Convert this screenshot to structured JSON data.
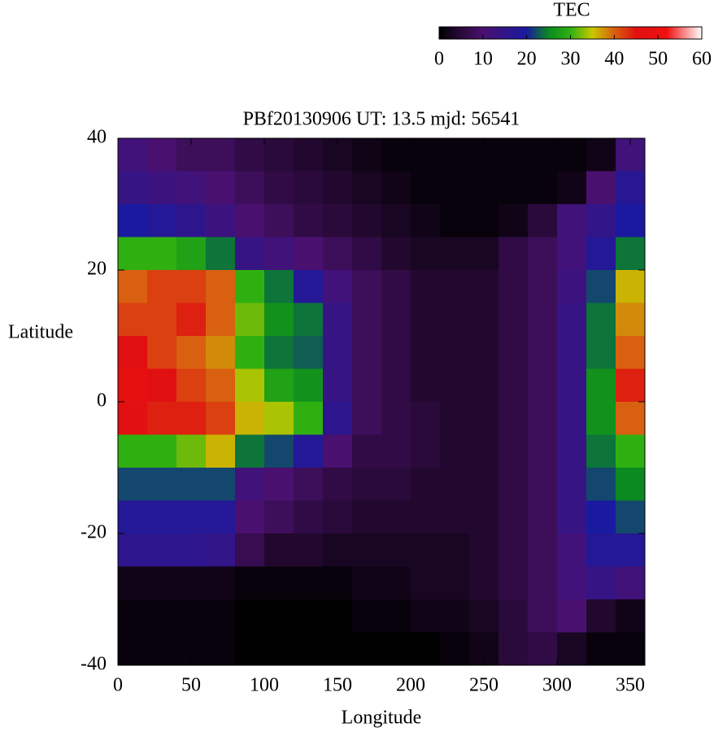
{
  "chart_data": {
    "type": "heatmap",
    "title": "PBf20130906  UT: 13.5  mjd: 56541",
    "x_label": "Longitude",
    "y_label": "Latitude",
    "xlim": [
      0,
      360
    ],
    "ylim": [
      -40,
      40
    ],
    "xticks": [
      0,
      50,
      100,
      150,
      200,
      250,
      300,
      350
    ],
    "yticks": [
      -40,
      -20,
      0,
      20,
      40
    ],
    "x": [
      10,
      30,
      50,
      70,
      90,
      110,
      130,
      150,
      170,
      190,
      210,
      230,
      250,
      270,
      290,
      310,
      330,
      350
    ],
    "y": [
      37.5,
      32.5,
      27.5,
      22.5,
      17.5,
      12.5,
      7.5,
      2.5,
      -2.5,
      -7.5,
      -12.5,
      -17.5,
      -22.5,
      -27.5,
      -32.5,
      -37.5
    ],
    "z": [
      [
        12,
        10,
        8,
        8,
        6,
        5,
        4,
        3,
        2,
        1,
        1,
        1,
        1,
        1,
        1,
        1,
        2,
        12
      ],
      [
        14,
        13,
        12,
        10,
        8,
        6,
        5,
        4,
        3,
        2,
        1,
        1,
        1,
        1,
        1,
        2,
        10,
        17
      ],
      [
        20,
        18,
        16,
        13,
        10,
        8,
        6,
        5,
        4,
        3,
        2,
        1,
        1,
        2,
        5,
        12,
        15,
        20
      ],
      [
        30,
        30,
        28,
        24,
        14,
        12,
        10,
        8,
        6,
        4,
        3,
        3,
        3,
        6,
        8,
        12,
        18,
        24
      ],
      [
        40,
        42,
        42,
        40,
        30,
        24,
        18,
        12,
        8,
        6,
        4,
        4,
        4,
        6,
        8,
        13,
        22,
        36
      ],
      [
        42,
        42,
        44,
        40,
        32,
        26,
        24,
        14,
        8,
        6,
        4,
        4,
        4,
        6,
        8,
        14,
        24,
        38
      ],
      [
        45,
        42,
        40,
        38,
        30,
        24,
        23,
        14,
        8,
        6,
        4,
        4,
        4,
        6,
        8,
        14,
        24,
        40
      ],
      [
        48,
        45,
        42,
        40,
        34,
        28,
        26,
        14,
        8,
        6,
        4,
        4,
        4,
        6,
        8,
        14,
        26,
        44
      ],
      [
        46,
        44,
        44,
        42,
        36,
        34,
        30,
        16,
        8,
        6,
        5,
        4,
        4,
        6,
        8,
        14,
        26,
        40
      ],
      [
        30,
        30,
        32,
        36,
        24,
        22,
        18,
        10,
        6,
        6,
        5,
        4,
        4,
        6,
        8,
        14,
        24,
        30
      ],
      [
        22,
        22,
        22,
        22,
        12,
        10,
        8,
        6,
        5,
        5,
        4,
        4,
        4,
        6,
        8,
        14,
        22,
        25
      ],
      [
        18,
        18,
        18,
        18,
        10,
        8,
        6,
        5,
        4,
        4,
        4,
        4,
        4,
        6,
        8,
        14,
        20,
        22
      ],
      [
        16,
        16,
        16,
        15,
        7,
        4,
        4,
        3,
        3,
        3,
        3,
        3,
        4,
        6,
        8,
        12,
        18,
        18
      ],
      [
        2,
        2,
        2,
        2,
        1,
        1,
        1,
        1,
        2,
        2,
        3,
        3,
        4,
        6,
        8,
        12,
        14,
        12
      ],
      [
        1,
        1,
        1,
        1,
        0,
        0,
        0,
        0,
        1,
        1,
        2,
        2,
        3,
        5,
        8,
        10,
        4,
        2
      ],
      [
        1,
        1,
        1,
        1,
        0,
        0,
        0,
        0,
        0,
        0,
        0,
        1,
        2,
        5,
        6,
        3,
        1,
        1
      ]
    ],
    "colormap": [
      [
        0,
        "#000000"
      ],
      [
        5,
        "#2a0a3a"
      ],
      [
        10,
        "#4a1070"
      ],
      [
        20,
        "#1a1aa0"
      ],
      [
        25,
        "#0a8a20"
      ],
      [
        30,
        "#30b010"
      ],
      [
        35,
        "#c8c800"
      ],
      [
        40,
        "#d86010"
      ],
      [
        45,
        "#e01010"
      ],
      [
        52,
        "#f01010"
      ],
      [
        60,
        "#ffffff"
      ]
    ],
    "colorbar": {
      "title": "TEC",
      "lim": [
        0,
        60
      ],
      "ticks": [
        0,
        10,
        20,
        30,
        40,
        50,
        60
      ]
    }
  }
}
